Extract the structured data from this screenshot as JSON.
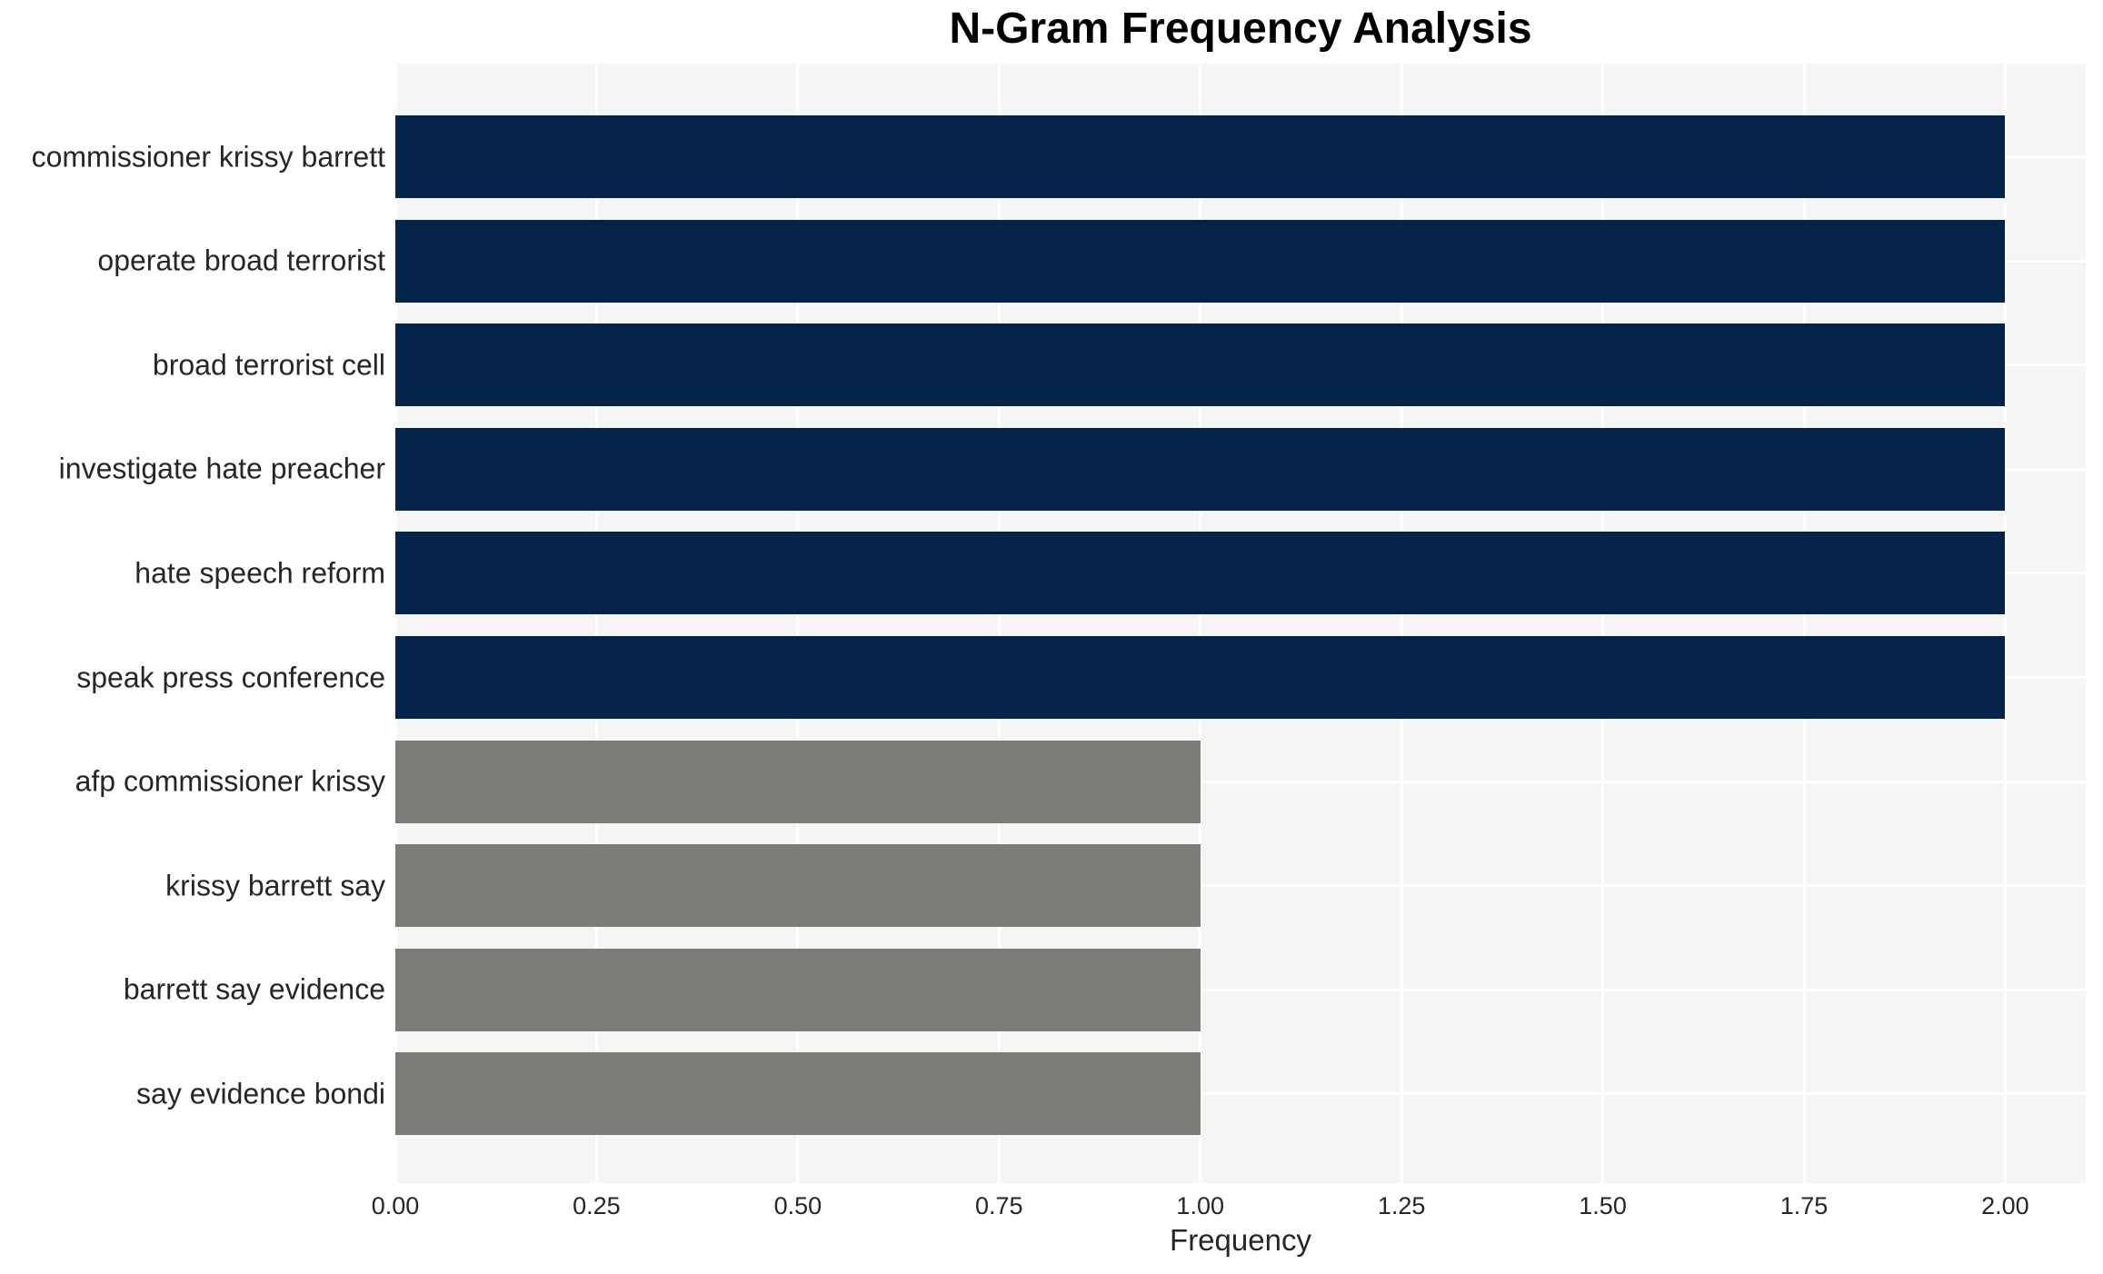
{
  "chart_data": {
    "type": "bar",
    "orientation": "horizontal",
    "title": "N-Gram Frequency Analysis",
    "xlabel": "Frequency",
    "ylabel": "",
    "categories": [
      "commissioner krissy barrett",
      "operate broad terrorist",
      "broad terrorist cell",
      "investigate hate preacher",
      "hate speech reform",
      "speak press conference",
      "afp commissioner krissy",
      "krissy barrett say",
      "barrett say evidence",
      "say evidence bondi"
    ],
    "values": [
      2.0,
      2.0,
      2.0,
      2.0,
      2.0,
      2.0,
      1.0,
      1.0,
      1.0,
      1.0
    ],
    "bar_colors": [
      "#032349",
      "#032349",
      "#032349",
      "#032349",
      "#032349",
      "#032349",
      "#7c7b78",
      "#7c7b78",
      "#7c7b78",
      "#7c7b78"
    ],
    "xticks": [
      {
        "value": 0.0,
        "label": "0.00"
      },
      {
        "value": 0.25,
        "label": "0.25"
      },
      {
        "value": 0.5,
        "label": "0.50"
      },
      {
        "value": 0.75,
        "label": "0.75"
      },
      {
        "value": 1.0,
        "label": "1.00"
      },
      {
        "value": 1.25,
        "label": "1.25"
      },
      {
        "value": 1.5,
        "label": "1.50"
      },
      {
        "value": 1.75,
        "label": "1.75"
      },
      {
        "value": 2.0,
        "label": "2.00"
      }
    ],
    "xlim": [
      0,
      2.1
    ],
    "grid": true,
    "legend": false,
    "colors": {
      "high_frequency_bar": "#032349",
      "low_frequency_bar": "#7c7b78",
      "plot_background": "#f5f5f5",
      "gridline": "#ffffff",
      "text": "#262626",
      "figure_background": "#ffffff"
    }
  }
}
